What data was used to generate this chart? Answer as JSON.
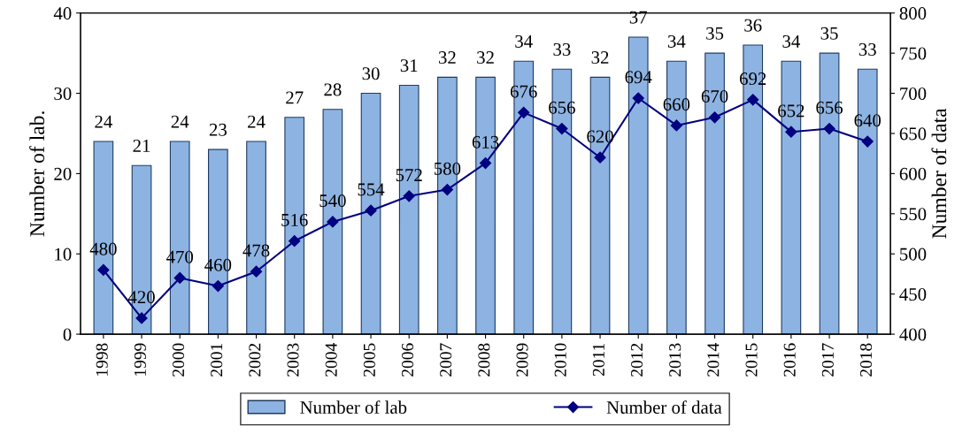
{
  "chart_data": {
    "type": "bar",
    "categories": [
      "1998",
      "1999",
      "2000",
      "2001",
      "2002",
      "2003",
      "2004",
      "2005",
      "2006",
      "2007",
      "2008",
      "2009",
      "2010",
      "2011",
      "2012",
      "2013",
      "2014",
      "2015",
      "2016",
      "2017",
      "2018"
    ],
    "series": [
      {
        "name": "Number of lab",
        "color": "#8db3e2",
        "values": [
          24,
          21,
          24,
          23,
          24,
          27,
          28,
          30,
          31,
          32,
          32,
          34,
          33,
          32,
          37,
          34,
          35,
          36,
          34,
          35,
          33
        ]
      },
      {
        "name": "Number of data",
        "type": "line",
        "axis": "y2",
        "color": "#000080",
        "values": [
          480,
          420,
          470,
          460,
          478,
          516,
          540,
          554,
          572,
          580,
          613,
          676,
          656,
          620,
          694,
          660,
          670,
          692,
          652,
          656,
          640
        ]
      }
    ],
    "ylabel": "Number of lab.",
    "y2label": "Number of data",
    "ylim": [
      0,
      40
    ],
    "yticks": [
      0,
      10,
      20,
      30,
      40
    ],
    "y2lim": [
      400,
      800
    ],
    "y2ticks": [
      400,
      450,
      500,
      550,
      600,
      650,
      700,
      750,
      800
    ],
    "data_labels": true,
    "legend": "bottom",
    "marker": "diamond",
    "line_style": "solid",
    "grid": false
  }
}
